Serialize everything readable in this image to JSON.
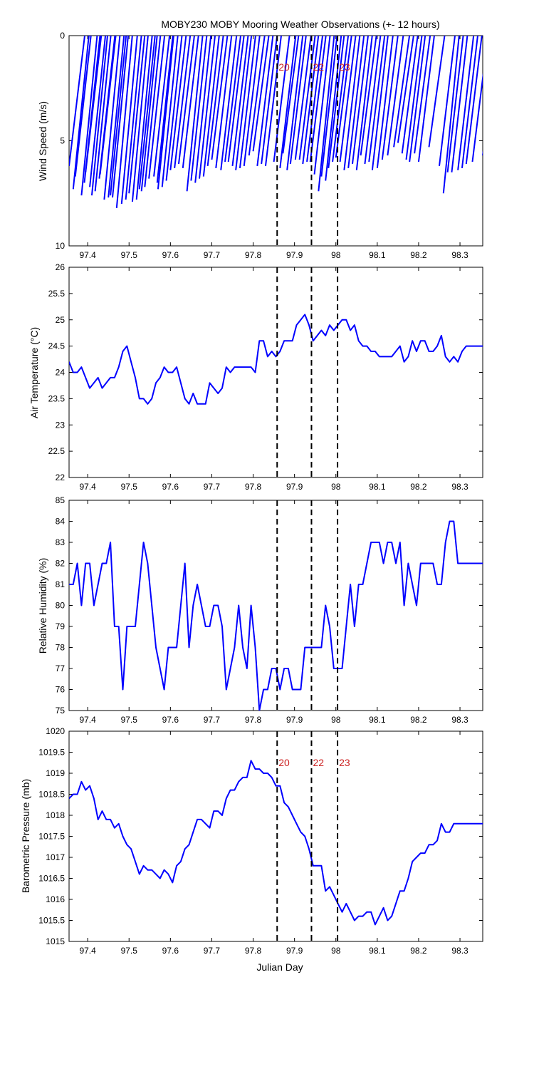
{
  "figure": {
    "title": "MOBY230 MOBY Mooring Weather Observations (+- 12 hours)"
  },
  "colors": {
    "series": "#0000ff",
    "marker_line": "#000000",
    "marker_label": "#cc2222",
    "axes": "#000000",
    "background": "#ffffff"
  },
  "chart_data": [
    {
      "type": "quiver",
      "ylabel": "Wind Speed (m/s)",
      "xlabel": "",
      "xlim": [
        97.355,
        98.355
      ],
      "ylim": [
        0,
        10
      ],
      "y_inverted": true,
      "grid": false,
      "xticks": [
        97.4,
        97.5,
        97.6,
        97.7,
        97.8,
        97.9,
        98,
        98.1,
        98.2,
        98.3
      ],
      "yticks": [
        0,
        5,
        10
      ],
      "ytick_labels": [
        "0",
        "5",
        "10"
      ],
      "markers": [
        {
          "x": 97.858,
          "label": "20"
        },
        {
          "x": 97.941,
          "label": "22"
        },
        {
          "x": 98.004,
          "label": "23"
        }
      ],
      "series": [
        {
          "t": [
            97.355,
            97.365,
            97.37,
            97.385,
            97.392,
            97.395,
            97.405,
            97.41,
            97.418,
            97.428,
            97.43,
            97.44,
            97.45,
            97.455,
            97.46,
            97.47,
            97.482,
            97.492,
            97.5,
            97.508,
            97.518,
            97.525,
            97.53,
            97.538,
            97.548,
            97.56,
            97.568,
            97.57,
            97.58,
            97.59,
            97.6,
            97.61,
            97.62,
            97.63,
            97.64,
            97.65,
            97.66,
            97.67,
            97.68,
            97.69,
            97.7,
            97.71,
            97.722,
            97.732,
            97.74,
            97.75,
            97.758,
            97.768,
            97.778,
            97.79,
            97.8,
            97.81,
            97.82,
            97.83,
            97.85,
            97.865,
            97.872,
            97.882,
            97.89,
            97.902,
            97.912,
            97.92,
            97.93,
            97.938,
            97.948,
            97.958,
            97.965,
            97.975,
            97.982,
            97.992,
            98,
            98.01,
            98.02,
            98.03,
            98.04,
            98.05,
            98.06,
            98.07,
            98.08,
            98.088,
            98.1,
            98.112,
            98.125,
            98.14,
            98.15,
            98.16,
            98.17,
            98.178,
            98.19,
            98.2,
            98.225,
            98.25,
            98.26,
            98.27,
            98.28,
            98.295,
            98.305,
            98.315,
            98.33,
            98.355
          ],
          "speed": [
            6.2,
            7.3,
            6.7,
            7.6,
            7.0,
            6.5,
            7.2,
            7.6,
            7.4,
            6.8,
            6.6,
            7.8,
            7.7,
            7.6,
            7.7,
            8.2,
            8.0,
            7.8,
            7.5,
            7.9,
            7.8,
            7.3,
            7.4,
            7.2,
            6.8,
            6.7,
            7.0,
            7.3,
            7.2,
            6.9,
            6.4,
            6.3,
            6.1,
            6.3,
            7.4,
            6.9,
            7.0,
            6.8,
            6.7,
            6.2,
            5.9,
            6.3,
            6.4,
            6.0,
            6.0,
            6.2,
            6.4,
            6.3,
            6.2,
            5.7,
            5.5,
            6.2,
            6.1,
            6.2,
            6.0,
            6.3,
            5.6,
            6.4,
            6.1,
            5.9,
            5.9,
            6.1,
            6.0,
            6.0,
            6.6,
            7.4,
            6.7,
            6.9,
            6.3,
            6.0,
            5.8,
            6.0,
            6.4,
            6.3,
            6.1,
            6.4,
            5.7,
            6.1,
            6.0,
            6.4,
            6.3,
            5.9,
            5.7,
            5.3,
            5.1,
            5.6,
            5.9,
            6.0,
            5.6,
            6.0,
            5.3,
            6.2,
            7.5,
            6.5,
            6.5,
            6.4,
            6.3,
            6.1,
            6.0,
            5.7
          ]
        }
      ]
    },
    {
      "type": "line",
      "ylabel": "Air Temperature (°C)",
      "xlabel": "",
      "xlim": [
        97.355,
        98.355
      ],
      "ylim": [
        22,
        26
      ],
      "grid": false,
      "xticks": [
        97.4,
        97.5,
        97.6,
        97.7,
        97.8,
        97.9,
        98,
        98.1,
        98.2,
        98.3
      ],
      "yticks": [
        22,
        22.5,
        23,
        23.5,
        24,
        24.5,
        25,
        25.5,
        26
      ],
      "ytick_labels": [
        "22",
        "22.5",
        "23",
        "23.5",
        "24",
        "24.5",
        "25",
        "25.5",
        "26"
      ],
      "markers": [
        {
          "x": 97.858,
          "label": ""
        },
        {
          "x": 97.941,
          "label": ""
        },
        {
          "x": 98.004,
          "label": ""
        }
      ],
      "series": [
        {
          "x": [
            97.355,
            97.365,
            97.375,
            97.385,
            97.395,
            97.405,
            97.415,
            97.425,
            97.435,
            97.445,
            97.455,
            97.465,
            97.475,
            97.485,
            97.495,
            97.505,
            97.515,
            97.525,
            97.535,
            97.545,
            97.555,
            97.565,
            97.575,
            97.585,
            97.595,
            97.605,
            97.615,
            97.625,
            97.635,
            97.645,
            97.655,
            97.665,
            97.675,
            97.685,
            97.695,
            97.705,
            97.715,
            97.725,
            97.735,
            97.745,
            97.755,
            97.765,
            97.775,
            97.785,
            97.795,
            97.805,
            97.815,
            97.825,
            97.835,
            97.845,
            97.855,
            97.865,
            97.875,
            97.885,
            97.895,
            97.905,
            97.915,
            97.925,
            97.935,
            97.945,
            97.955,
            97.965,
            97.975,
            97.985,
            97.995,
            98.005,
            98.015,
            98.025,
            98.035,
            98.045,
            98.055,
            98.065,
            98.075,
            98.085,
            98.095,
            98.105,
            98.115,
            98.125,
            98.135,
            98.145,
            98.155,
            98.165,
            98.175,
            98.185,
            98.195,
            98.205,
            98.215,
            98.225,
            98.235,
            98.245,
            98.255,
            98.265,
            98.275,
            98.285,
            98.295,
            98.305,
            98.315,
            98.325,
            98.335,
            98.345,
            98.355
          ],
          "y": [
            24.2,
            24.0,
            24.0,
            24.1,
            23.9,
            23.7,
            23.8,
            23.9,
            23.7,
            23.8,
            23.9,
            23.9,
            24.1,
            24.4,
            24.5,
            24.2,
            23.9,
            23.5,
            23.5,
            23.4,
            23.5,
            23.8,
            23.9,
            24.1,
            24.0,
            24.0,
            24.1,
            23.8,
            23.5,
            23.4,
            23.6,
            23.4,
            23.4,
            23.4,
            23.8,
            23.7,
            23.6,
            23.7,
            24.1,
            24.0,
            24.1,
            24.1,
            24.1,
            24.1,
            24.1,
            24.0,
            24.6,
            24.6,
            24.3,
            24.4,
            24.3,
            24.4,
            24.6,
            24.6,
            24.6,
            24.9,
            25.0,
            25.1,
            24.9,
            24.6,
            24.7,
            24.8,
            24.7,
            24.9,
            24.8,
            24.9,
            25.0,
            25.0,
            24.8,
            24.9,
            24.6,
            24.5,
            24.5,
            24.4,
            24.4,
            24.3,
            24.3,
            24.3,
            24.3,
            24.4,
            24.5,
            24.2,
            24.3,
            24.6,
            24.4,
            24.6,
            24.6,
            24.4,
            24.4,
            24.5,
            24.7,
            24.3,
            24.2,
            24.3,
            24.2,
            24.4,
            24.5,
            24.5,
            24.5,
            24.5,
            24.5
          ]
        }
      ]
    },
    {
      "type": "line",
      "ylabel": "Relative Humidity (%)",
      "xlabel": "",
      "xlim": [
        97.355,
        98.355
      ],
      "ylim": [
        75,
        85
      ],
      "grid": false,
      "xticks": [
        97.4,
        97.5,
        97.6,
        97.7,
        97.8,
        97.9,
        98,
        98.1,
        98.2,
        98.3
      ],
      "yticks": [
        75,
        76,
        77,
        78,
        79,
        80,
        81,
        82,
        83,
        84,
        85
      ],
      "ytick_labels": [
        "75",
        "76",
        "77",
        "78",
        "79",
        "80",
        "81",
        "82",
        "83",
        "84",
        "85"
      ],
      "markers": [
        {
          "x": 97.858,
          "label": ""
        },
        {
          "x": 97.941,
          "label": ""
        },
        {
          "x": 98.004,
          "label": ""
        }
      ],
      "series": [
        {
          "x": [
            97.355,
            97.365,
            97.375,
            97.385,
            97.395,
            97.405,
            97.415,
            97.425,
            97.435,
            97.445,
            97.455,
            97.465,
            97.475,
            97.485,
            97.495,
            97.505,
            97.515,
            97.525,
            97.535,
            97.545,
            97.555,
            97.565,
            97.575,
            97.585,
            97.595,
            97.605,
            97.615,
            97.625,
            97.635,
            97.645,
            97.655,
            97.665,
            97.675,
            97.685,
            97.695,
            97.705,
            97.715,
            97.725,
            97.735,
            97.745,
            97.755,
            97.765,
            97.775,
            97.785,
            97.795,
            97.805,
            97.815,
            97.825,
            97.835,
            97.845,
            97.855,
            97.865,
            97.875,
            97.885,
            97.895,
            97.905,
            97.915,
            97.925,
            97.935,
            97.945,
            97.955,
            97.965,
            97.975,
            97.985,
            97.995,
            98.005,
            98.015,
            98.025,
            98.035,
            98.045,
            98.055,
            98.065,
            98.075,
            98.085,
            98.095,
            98.105,
            98.115,
            98.125,
            98.135,
            98.145,
            98.155,
            98.165,
            98.175,
            98.185,
            98.195,
            98.205,
            98.215,
            98.225,
            98.235,
            98.245,
            98.255,
            98.265,
            98.275,
            98.285,
            98.295,
            98.305,
            98.315,
            98.325,
            98.335,
            98.345,
            98.355
          ],
          "y": [
            81,
            81,
            82,
            80,
            82,
            82,
            80,
            81,
            82,
            82,
            83,
            79,
            79,
            76,
            79,
            79,
            79,
            81,
            83,
            82,
            80,
            78,
            77,
            76,
            78,
            78,
            78,
            80,
            82,
            78,
            80,
            81,
            80,
            79,
            79,
            80,
            80,
            79,
            76,
            77,
            78,
            80,
            78,
            77,
            80,
            78,
            75,
            76,
            76,
            77,
            77,
            76,
            77,
            77,
            76,
            76,
            76,
            78,
            78,
            78,
            78,
            78,
            80,
            79,
            77,
            77,
            77,
            79,
            81,
            79,
            81,
            81,
            82,
            83,
            83,
            83,
            82,
            83,
            83,
            82,
            83,
            80,
            82,
            81,
            80,
            82,
            82,
            82,
            82,
            81,
            81,
            83,
            84,
            84,
            82,
            82,
            82,
            82,
            82,
            82,
            82
          ]
        }
      ]
    },
    {
      "type": "line",
      "ylabel": "Barometric Pressure (mb)",
      "xlabel": "Julian Day",
      "xlim": [
        97.355,
        98.355
      ],
      "ylim": [
        1015,
        1020
      ],
      "grid": false,
      "xticks": [
        97.4,
        97.5,
        97.6,
        97.7,
        97.8,
        97.9,
        98,
        98.1,
        98.2,
        98.3
      ],
      "yticks": [
        1015,
        1015.5,
        1016,
        1016.5,
        1017,
        1017.5,
        1018,
        1018.5,
        1019,
        1019.5,
        1020
      ],
      "ytick_labels": [
        "1015",
        "1015.5",
        "1016",
        "1016.5",
        "1017",
        "1017.5",
        "1018",
        "1018.5",
        "1019",
        "1019.5",
        "1020"
      ],
      "markers": [
        {
          "x": 97.858,
          "label": "20"
        },
        {
          "x": 97.941,
          "label": "22"
        },
        {
          "x": 98.004,
          "label": "23"
        }
      ],
      "series": [
        {
          "x": [
            97.355,
            97.365,
            97.375,
            97.385,
            97.395,
            97.405,
            97.415,
            97.425,
            97.435,
            97.445,
            97.455,
            97.465,
            97.475,
            97.485,
            97.495,
            97.505,
            97.515,
            97.525,
            97.535,
            97.545,
            97.555,
            97.565,
            97.575,
            97.585,
            97.595,
            97.605,
            97.615,
            97.625,
            97.635,
            97.645,
            97.655,
            97.665,
            97.675,
            97.685,
            97.695,
            97.705,
            97.715,
            97.725,
            97.735,
            97.745,
            97.755,
            97.765,
            97.775,
            97.785,
            97.795,
            97.805,
            97.815,
            97.825,
            97.835,
            97.845,
            97.855,
            97.865,
            97.875,
            97.885,
            97.895,
            97.905,
            97.915,
            97.925,
            97.935,
            97.945,
            97.955,
            97.965,
            97.975,
            97.985,
            97.995,
            98.005,
            98.015,
            98.025,
            98.035,
            98.045,
            98.055,
            98.065,
            98.075,
            98.085,
            98.095,
            98.105,
            98.115,
            98.125,
            98.135,
            98.145,
            98.155,
            98.165,
            98.175,
            98.185,
            98.195,
            98.205,
            98.215,
            98.225,
            98.235,
            98.245,
            98.255,
            98.265,
            98.275,
            98.285,
            98.295,
            98.305,
            98.315,
            98.325,
            98.335,
            98.345,
            98.355
          ],
          "y": [
            1018.4,
            1018.5,
            1018.5,
            1018.8,
            1018.6,
            1018.7,
            1018.4,
            1017.9,
            1018.1,
            1017.9,
            1017.9,
            1017.7,
            1017.8,
            1017.5,
            1017.3,
            1017.2,
            1016.9,
            1016.6,
            1016.8,
            1016.7,
            1016.7,
            1016.6,
            1016.5,
            1016.7,
            1016.6,
            1016.4,
            1016.8,
            1016.9,
            1017.2,
            1017.3,
            1017.6,
            1017.9,
            1017.9,
            1017.8,
            1017.7,
            1018.1,
            1018.1,
            1018.0,
            1018.4,
            1018.6,
            1018.6,
            1018.8,
            1018.9,
            1018.9,
            1019.3,
            1019.1,
            1019.1,
            1019.0,
            1019.0,
            1018.9,
            1018.7,
            1018.7,
            1018.3,
            1018.2,
            1018.0,
            1017.8,
            1017.6,
            1017.5,
            1017.2,
            1016.8,
            1016.8,
            1016.8,
            1016.2,
            1016.3,
            1016.1,
            1015.9,
            1015.7,
            1015.9,
            1015.7,
            1015.5,
            1015.6,
            1015.6,
            1015.7,
            1015.7,
            1015.4,
            1015.6,
            1015.8,
            1015.5,
            1015.6,
            1015.9,
            1016.2,
            1016.2,
            1016.5,
            1016.9,
            1017.0,
            1017.1,
            1017.1,
            1017.3,
            1017.3,
            1017.4,
            1017.8,
            1017.6,
            1017.6,
            1017.8,
            1017.8,
            1017.8,
            1017.8,
            1017.8,
            1017.8,
            1017.8,
            1017.8
          ]
        }
      ]
    }
  ]
}
